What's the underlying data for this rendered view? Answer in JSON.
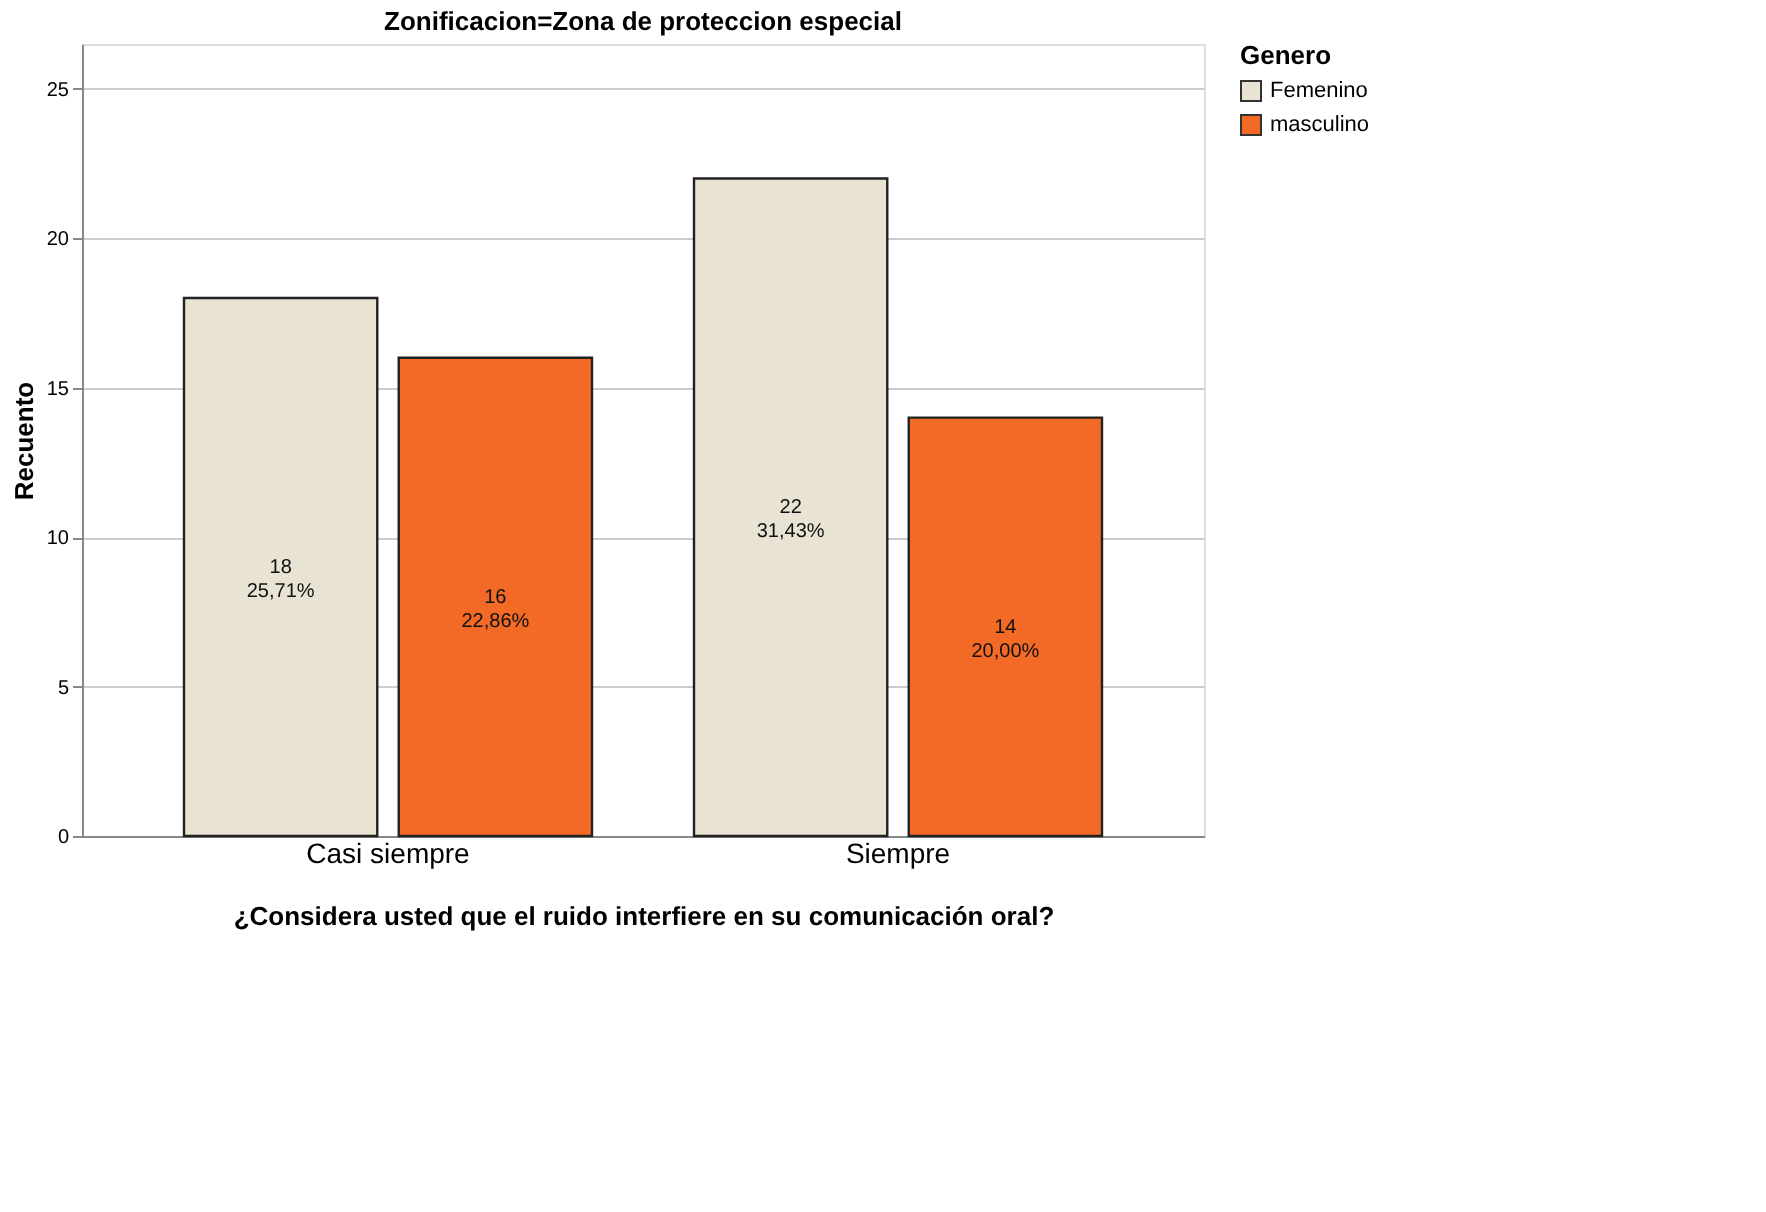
{
  "chart_data": {
    "type": "bar",
    "title": "Zonificacion=Zona de proteccion especial",
    "xlabel": "¿Considera usted que el ruido interfiere en su comunicación oral?",
    "ylabel": "Recuento",
    "legend_title": "Genero",
    "categories": [
      "Casi siempre",
      "Siempre"
    ],
    "series": [
      {
        "name": "Femenino",
        "color": "#e8e3d3",
        "values": [
          18,
          22
        ],
        "value_labels": [
          "18\n25,71%",
          "22\n31,43%"
        ]
      },
      {
        "name": "masculino",
        "color": "#f26a25",
        "values": [
          16,
          14
        ],
        "value_labels": [
          "16\n22,86%",
          "14\n20,00%"
        ]
      }
    ],
    "ylim": [
      0,
      26.5
    ],
    "yticks": [
      0,
      5,
      10,
      15,
      20,
      25
    ],
    "grid": "y",
    "legend": "top right"
  }
}
